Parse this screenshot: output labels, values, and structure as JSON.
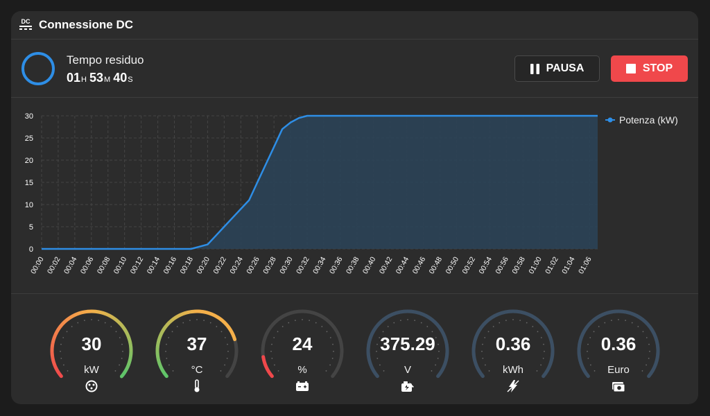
{
  "header": {
    "title": "Connessione DC",
    "icon": "dc-icon"
  },
  "session": {
    "remaining_label": "Tempo residuo",
    "hours": "01",
    "hours_unit": "H",
    "minutes": "53",
    "minutes_unit": "M",
    "seconds": "40",
    "seconds_unit": "S",
    "pause_label": "PAUSA",
    "stop_label": "STOP"
  },
  "colors": {
    "accent": "#2e8ee6",
    "stop": "#f0484b",
    "fill": "#2b4257"
  },
  "chart_data": {
    "type": "area",
    "x": [
      "00:00",
      "00:02",
      "00:04",
      "00:06",
      "00:08",
      "00:10",
      "00:12",
      "00:14",
      "00:16",
      "00:18",
      "00:19",
      "00:20",
      "00:21",
      "00:22",
      "00:23",
      "00:24",
      "00:25",
      "00:26",
      "00:27",
      "00:28",
      "00:29",
      "00:30",
      "00:31",
      "00:32",
      "00:34",
      "00:36",
      "00:38",
      "00:40",
      "00:42",
      "00:44",
      "00:46",
      "00:48",
      "00:50",
      "00:52",
      "00:54",
      "00:56",
      "00:58",
      "01:00",
      "01:02",
      "01:04",
      "01:06",
      "01:07"
    ],
    "series": [
      {
        "name": "Potenza (kW)",
        "values": [
          0,
          0,
          0,
          0,
          0,
          0,
          0,
          0,
          0,
          0,
          0.5,
          1,
          3,
          5,
          7,
          9,
          11,
          15,
          19,
          23,
          27,
          28.5,
          29.5,
          30,
          30,
          30,
          30,
          30,
          30,
          30,
          30,
          30,
          30,
          30,
          30,
          30,
          30,
          30,
          30,
          30,
          30,
          30
        ]
      }
    ],
    "x_ticks": [
      "00:00",
      "00:02",
      "00:04",
      "00:06",
      "00:08",
      "00:10",
      "00:12",
      "00:14",
      "00:16",
      "00:18",
      "00:20",
      "00:22",
      "00:24",
      "00:26",
      "00:28",
      "00:30",
      "00:32",
      "00:34",
      "00:36",
      "00:38",
      "00:40",
      "00:42",
      "00:44",
      "00:46",
      "00:48",
      "00:50",
      "00:52",
      "00:54",
      "00:56",
      "00:58",
      "01:00",
      "01:02",
      "01:04",
      "01:06"
    ],
    "y_ticks": [
      "0",
      "5",
      "10",
      "15",
      "20",
      "25",
      "30"
    ],
    "ylim": [
      0,
      30
    ],
    "grid": true,
    "legend": "right"
  },
  "gauges": [
    {
      "value": "30",
      "unit": "kW",
      "icon": "plug-icon",
      "fraction": 1.0,
      "style": "gradient-rg"
    },
    {
      "value": "37",
      "unit": "°C",
      "icon": "thermometer-icon",
      "fraction": 0.78,
      "style": "gradient-gr"
    },
    {
      "value": "24",
      "unit": "%",
      "icon": "battery-icon",
      "fraction": 0.12,
      "style": "red"
    },
    {
      "value": "375.29",
      "unit": "V",
      "icon": "ev-icon",
      "fraction": 1.0,
      "style": "slate"
    },
    {
      "value": "0.36",
      "unit": "kWh",
      "icon": "energy-icon",
      "fraction": 1.0,
      "style": "slate"
    },
    {
      "value": "0.36",
      "unit": "Euro",
      "icon": "money-icon",
      "fraction": 1.0,
      "style": "slate"
    }
  ]
}
